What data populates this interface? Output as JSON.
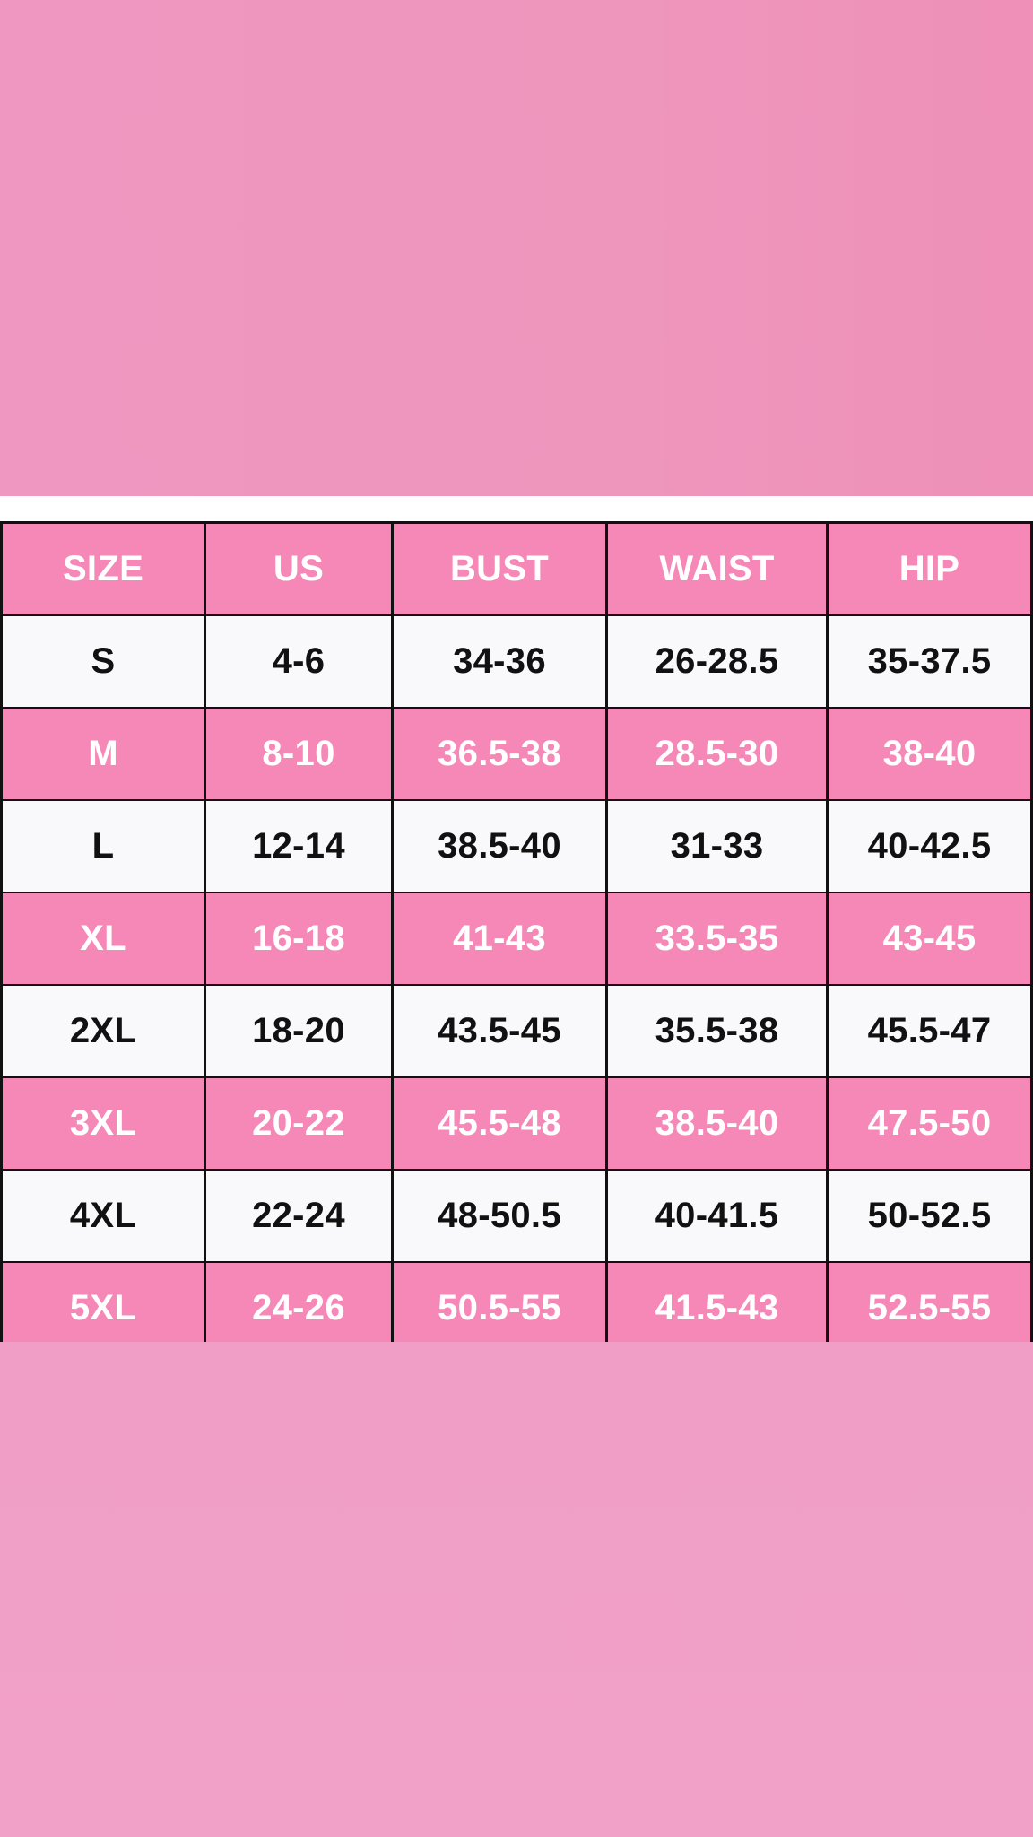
{
  "colors": {
    "background_pink": "#ef96bd",
    "row_pink": "#f588b7",
    "row_light": "#f9f9fb",
    "grid_line": "#111111"
  },
  "table": {
    "headers": [
      "SIZE",
      "US",
      "BUST",
      "WAIST",
      "HIP"
    ],
    "rows": [
      [
        "S",
        "4-6",
        "34-36",
        "26-28.5",
        "35-37.5"
      ],
      [
        "M",
        "8-10",
        "36.5-38",
        "28.5-30",
        "38-40"
      ],
      [
        "L",
        "12-14",
        "38.5-40",
        "31-33",
        "40-42.5"
      ],
      [
        "XL",
        "16-18",
        "41-43",
        "33.5-35",
        "43-45"
      ],
      [
        "2XL",
        "18-20",
        "43.5-45",
        "35.5-38",
        "45.5-47"
      ],
      [
        "3XL",
        "20-22",
        "45.5-48",
        "38.5-40",
        "47.5-50"
      ],
      [
        "4XL",
        "22-24",
        "48-50.5",
        "40-41.5",
        "50-52.5"
      ],
      [
        "5XL",
        "24-26",
        "50.5-55",
        "41.5-43",
        "52.5-55"
      ]
    ]
  }
}
